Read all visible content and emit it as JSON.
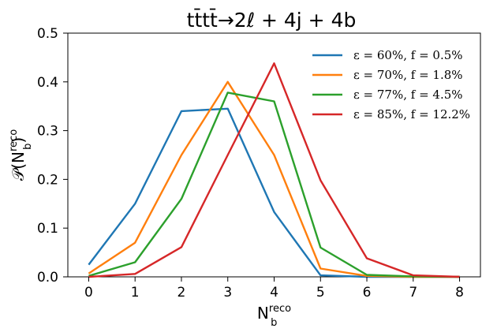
{
  "chart_data": {
    "type": "line",
    "title": "tt̄tt̄→2ℓ + 4j + 4b",
    "xlabel": {
      "main": "N",
      "sup": "reco",
      "sub": "b"
    },
    "ylabel": {
      "prefix": "𝒫(N",
      "sup": "reco",
      "sub": "b",
      "suffix": ")"
    },
    "xlim": [
      -0.45,
      8.45
    ],
    "ylim": [
      0,
      0.5
    ],
    "xticks": [
      0,
      1,
      2,
      3,
      4,
      5,
      6,
      7,
      8
    ],
    "yticks": [
      0.0,
      0.1,
      0.2,
      0.3,
      0.4,
      0.5
    ],
    "ytick_labels": [
      "0.0",
      "0.1",
      "0.2",
      "0.3",
      "0.4",
      "0.5"
    ],
    "x": [
      0,
      1,
      2,
      3,
      4,
      5,
      6,
      7,
      8
    ],
    "grid": false,
    "legend_position": "top-right",
    "series": [
      {
        "name": "ε = 60%, f = 0.5%",
        "color": "#1f77b4",
        "values": [
          0.025,
          0.15,
          0.34,
          0.345,
          0.133,
          0.003,
          0.0,
          0.0,
          0.0
        ]
      },
      {
        "name": "ε = 70%, f = 1.8%",
        "color": "#ff7f0e",
        "values": [
          0.007,
          0.07,
          0.25,
          0.4,
          0.25,
          0.017,
          0.002,
          0.0,
          0.0
        ]
      },
      {
        "name": "ε = 77%, f = 4.5%",
        "color": "#2ca02c",
        "values": [
          0.002,
          0.03,
          0.16,
          0.378,
          0.36,
          0.06,
          0.004,
          0.001,
          0.0
        ]
      },
      {
        "name": "ε = 85%, f = 12.2%",
        "color": "#d62728",
        "values": [
          0.0,
          0.006,
          0.061,
          0.25,
          0.438,
          0.198,
          0.038,
          0.003,
          0.0
        ]
      }
    ]
  }
}
